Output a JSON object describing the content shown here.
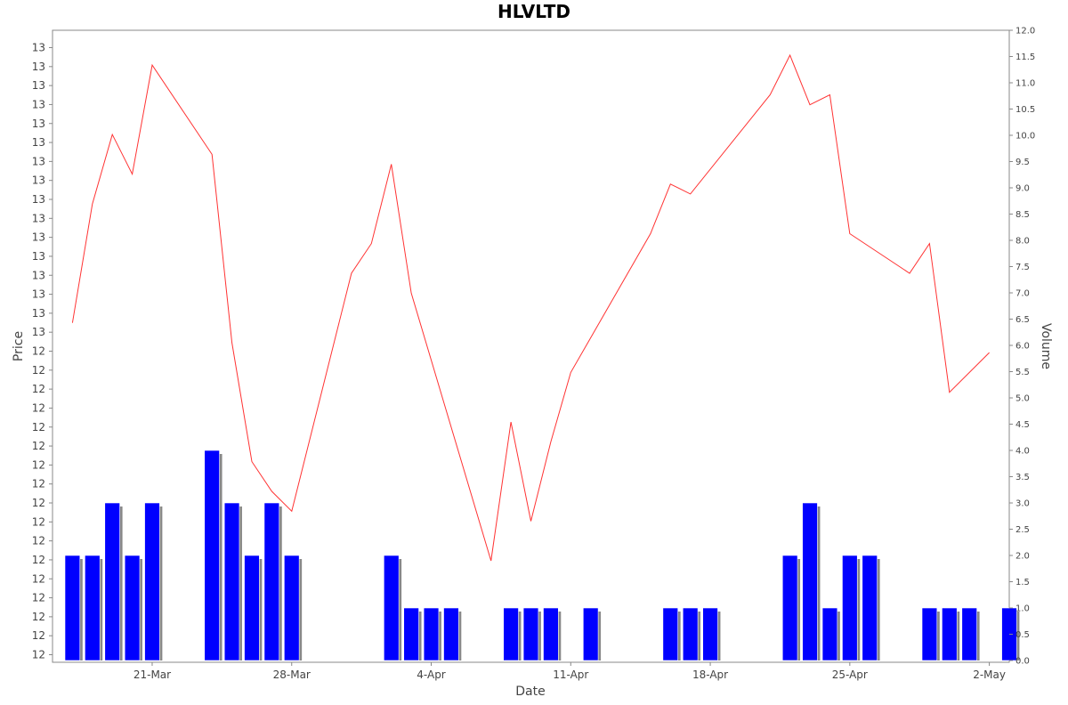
{
  "chart_data": {
    "type": "line+bar",
    "title": "HLVLTD",
    "xlabel": "Date",
    "ylabel_left": "Price",
    "ylabel_right": "Volume",
    "grid": false,
    "colors": {
      "price_line": "#ff3333",
      "volume_bar": "#0000ff",
      "volume_shadow": "#888888",
      "axis": "#888888"
    },
    "x_tick_labels": [
      "21-Mar",
      "28-Mar",
      "4-Apr",
      "11-Apr",
      "18-Apr",
      "25-Apr",
      "2-May"
    ],
    "x_tick_dates": [
      "2022-03-21",
      "2022-03-28",
      "2022-04-04",
      "2022-04-11",
      "2022-04-18",
      "2022-04-25",
      "2022-05-02"
    ],
    "x_range": [
      "2022-03-16",
      "2022-05-03"
    ],
    "left_axis_tick_labels": [
      "13",
      "13",
      "13",
      "13",
      "13",
      "13",
      "13",
      "13",
      "13",
      "13",
      "13",
      "13",
      "13",
      "13",
      "13",
      "13",
      "12",
      "12",
      "12",
      "12",
      "12",
      "12",
      "12",
      "12",
      "12",
      "12",
      "12",
      "12",
      "12",
      "12",
      "12",
      "12",
      "12"
    ],
    "right_axis": {
      "ylim": [
        0,
        12
      ],
      "tick_labels": [
        "0.0",
        "0.5",
        "1.0",
        "1.5",
        "2.0",
        "2.5",
        "3.0",
        "3.5",
        "4.0",
        "4.5",
        "5.0",
        "5.5",
        "6.0",
        "6.5",
        "7.0",
        "7.5",
        "8.0",
        "8.5",
        "9.0",
        "9.5",
        "10.0",
        "10.5",
        "11.0",
        "11.5",
        "12.0"
      ]
    },
    "price_series": {
      "x": [
        "2022-03-17",
        "2022-03-18",
        "2022-03-19",
        "2022-03-20",
        "2022-03-21",
        "2022-03-24",
        "2022-03-25",
        "2022-03-26",
        "2022-03-27",
        "2022-03-28",
        "2022-03-31",
        "2022-04-01",
        "2022-04-02",
        "2022-04-03",
        "2022-04-07",
        "2022-04-08",
        "2022-04-09",
        "2022-04-10",
        "2022-04-11",
        "2022-04-15",
        "2022-04-16",
        "2022-04-17",
        "2022-04-21",
        "2022-04-22",
        "2022-04-23",
        "2022-04-24",
        "2022-04-25",
        "2022-04-28",
        "2022-04-29",
        "2022-04-30",
        "2022-05-02"
      ],
      "values": [
        13.3,
        13.42,
        13.49,
        13.45,
        13.56,
        13.47,
        13.28,
        13.16,
        13.13,
        13.11,
        13.35,
        13.38,
        13.46,
        13.33,
        13.06,
        13.2,
        13.1,
        13.18,
        13.25,
        13.39,
        13.44,
        13.43,
        13.53,
        13.57,
        13.52,
        13.53,
        13.39,
        13.35,
        13.38,
        13.23,
        13.27
      ]
    },
    "volume_series": {
      "x": [
        "2022-03-17",
        "2022-03-18",
        "2022-03-19",
        "2022-03-20",
        "2022-03-21",
        "2022-03-24",
        "2022-03-25",
        "2022-03-26",
        "2022-03-27",
        "2022-03-28",
        "2022-04-02",
        "2022-04-03",
        "2022-04-04",
        "2022-04-05",
        "2022-04-08",
        "2022-04-09",
        "2022-04-10",
        "2022-04-12",
        "2022-04-16",
        "2022-04-17",
        "2022-04-18",
        "2022-04-22",
        "2022-04-23",
        "2022-04-24",
        "2022-04-25",
        "2022-04-26",
        "2022-04-29",
        "2022-04-30",
        "2022-05-01",
        "2022-05-03"
      ],
      "values": [
        2,
        2,
        3,
        2,
        3,
        4,
        3,
        2,
        3,
        2,
        2,
        1,
        1,
        1,
        1,
        1,
        1,
        1,
        1,
        1,
        1,
        2,
        3,
        1,
        2,
        2,
        1,
        1,
        1,
        1
      ]
    }
  }
}
